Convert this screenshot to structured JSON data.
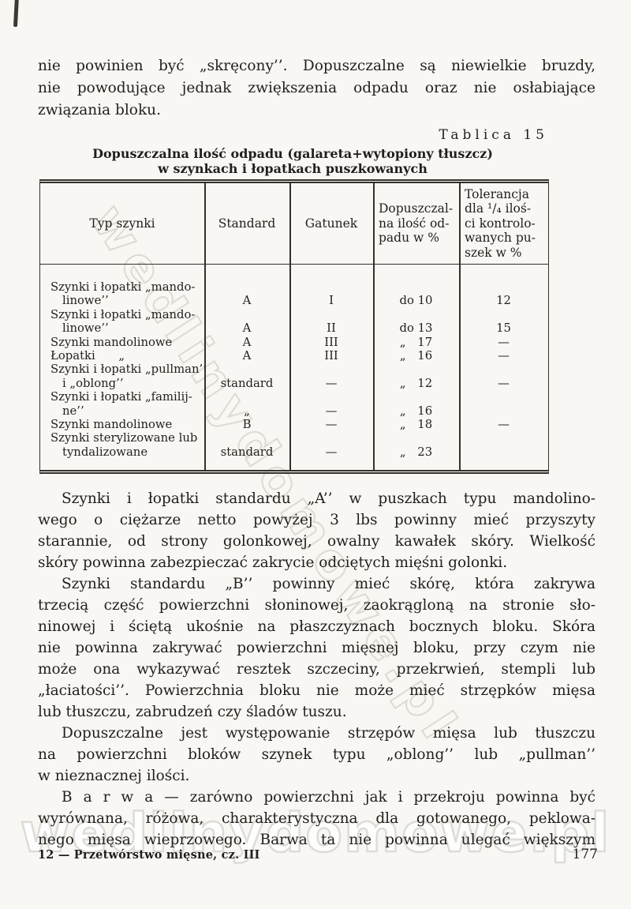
{
  "watermarks": {
    "diagonal": "wedlinydomowe.pl",
    "bottom": "wedlinydomowe.pl"
  },
  "intro": {
    "lines": [
      "nie powinien być „skręcony’’. Dopuszczalne są niewielkie bruzdy,",
      "nie powodujące jednak zwiększenia odpadu oraz nie osłabiające"
    ],
    "last_line": "związania bloku."
  },
  "table_label": "Tablica 15",
  "table_title": {
    "line1": "Dopuszczalna ilość odpadu (galareta+wytopiony tłuszcz)",
    "line2": "w szynkach i łopatkach puszkowanych"
  },
  "table": {
    "headers": [
      {
        "lines": [
          "Typ szynki"
        ]
      },
      {
        "lines": [
          "Standard"
        ]
      },
      {
        "lines": [
          "Gatunek"
        ]
      },
      {
        "lines": [
          "Dopuszczal-",
          "na ilość od-",
          "padu w %"
        ]
      },
      {
        "lines": [
          "Tolerancja",
          "dla ¹/₄ iloś-",
          "ci kontrolo-",
          "wanych pu-",
          "szek w %"
        ]
      }
    ],
    "rows": [
      {
        "indent": false,
        "cells": [
          "Szynki i łopatki „mando-",
          "",
          "",
          "",
          ""
        ]
      },
      {
        "indent": true,
        "cells": [
          "linowe’’",
          "A",
          "I",
          "do 10",
          "12"
        ]
      },
      {
        "indent": false,
        "cells": [
          "Szynki i łopatki „mando-",
          "",
          "",
          "",
          ""
        ]
      },
      {
        "indent": true,
        "cells": [
          "linowe’’",
          "A",
          "II",
          "do 13",
          "15"
        ]
      },
      {
        "indent": false,
        "cells": [
          "Szynki mandolinowe",
          "A",
          "III",
          "„  17",
          "—"
        ]
      },
      {
        "indent": false,
        "cells": [
          "Łopatki  „",
          "A",
          "III",
          "„  16",
          "—"
        ]
      },
      {
        "indent": false,
        "cells": [
          "Szynki i łopatki „pullman’’",
          "",
          "",
          "",
          ""
        ]
      },
      {
        "indent": true,
        "cells": [
          "i „oblong’’",
          "standard",
          "—",
          "„  12",
          "—"
        ]
      },
      {
        "indent": false,
        "cells": [
          "Szynki i łopatki „familij-",
          "",
          "",
          "",
          ""
        ]
      },
      {
        "indent": true,
        "cells": [
          "ne’’",
          "„",
          "—",
          "„  16",
          ""
        ]
      },
      {
        "indent": false,
        "cells": [
          "Szynki mandolinowe",
          "B",
          "—",
          "„  18",
          "—"
        ]
      },
      {
        "indent": false,
        "cells": [
          "Szynki sterylizowane lub",
          "",
          "",
          "",
          ""
        ]
      },
      {
        "indent": true,
        "cells": [
          "tyndalizowane",
          "standard",
          "—",
          "„  23",
          ""
        ]
      }
    ]
  },
  "paragraphs": [
    {
      "indent": true,
      "lines": [
        "Szynki i łopatki standardu „A’’ w puszkach typu mandolino-",
        "wego o ciężarze netto powyżej 3 lbs powinny mieć przyszyty",
        "starannie, od strony golonkowej, owalny kawałek skóry. Wielkość"
      ],
      "last_line": "skóry powinna zabezpieczać zakrycie odciętych mięśni golonki."
    },
    {
      "indent": true,
      "lines": [
        "Szynki standardu „B’’ powinny mieć skórę, która zakrywa",
        "trzecią część powierzchni słoninowej, zaokrągloną na stronie sło-",
        "ninowej i ściętą ukośnie na płaszczyznach bocznych bloku. Skóra",
        "nie powinna zakrywać powierzchni mięsnej bloku, przy czym nie",
        "może ona wykazywać resztek szczeciny, przekrwień, stempli lub",
        "„łaciatości’’. Powierzchnia bloku nie może mieć strzępków mięsa"
      ],
      "last_line": "lub tłuszczu, zabrudzeń czy śladów tuszu."
    },
    {
      "indent": true,
      "lines": [
        "Dopuszczalne jest występowanie strzępów mięsa lub tłuszczu",
        "na powierzchni bloków szynek typu „oblong’’ lub „pullman’’"
      ],
      "last_line": "w nieznacznej ilości."
    },
    {
      "indent": true,
      "lines": [
        "B a r w a — zarówno powierzchni jak i przekroju powinna być",
        "wyrównana, różowa, charakterystyczna dla gotowanego, peklowa-",
        "nego mięsa wieprzowego. Barwa ta nie powinna ulegać większym"
      ],
      "last_line": ""
    }
  ],
  "footer": {
    "left": "12 — Przetwórstwo mięsne, cz. III",
    "page_number": "177"
  }
}
